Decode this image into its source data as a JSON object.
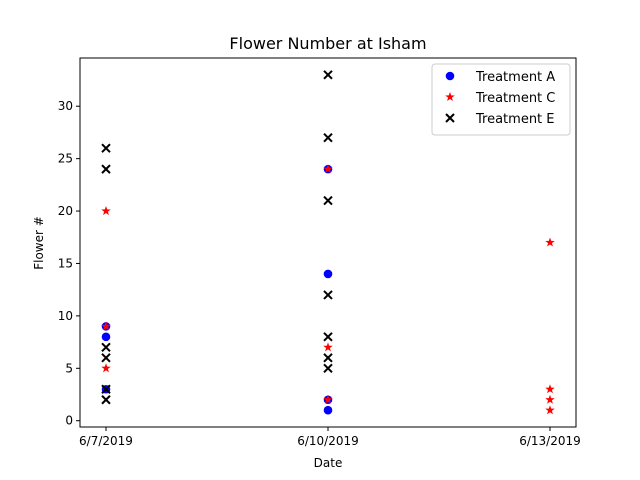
{
  "chart_data": {
    "type": "scatter",
    "title": "Flower Number at Isham",
    "xlabel": "Date",
    "ylabel": "Flower #",
    "x_categories": [
      "6/7/2019",
      "6/10/2019",
      "6/13/2019"
    ],
    "ylim": [
      -0.6,
      34.6
    ],
    "yticks": [
      0,
      5,
      10,
      15,
      20,
      25,
      30
    ],
    "grid": false,
    "legend_position": "top-right",
    "series": [
      {
        "name": "Treatment A",
        "marker": "circle",
        "color": "#0000ff",
        "points": [
          {
            "x": "6/7/2019",
            "y": 9
          },
          {
            "x": "6/7/2019",
            "y": 8
          },
          {
            "x": "6/7/2019",
            "y": 3
          },
          {
            "x": "6/10/2019",
            "y": 24
          },
          {
            "x": "6/10/2019",
            "y": 14
          },
          {
            "x": "6/10/2019",
            "y": 2
          },
          {
            "x": "6/10/2019",
            "y": 1
          }
        ]
      },
      {
        "name": "Treatment C",
        "marker": "star",
        "color": "#ff0000",
        "points": [
          {
            "x": "6/7/2019",
            "y": 20
          },
          {
            "x": "6/7/2019",
            "y": 9
          },
          {
            "x": "6/7/2019",
            "y": 5
          },
          {
            "x": "6/10/2019",
            "y": 24
          },
          {
            "x": "6/10/2019",
            "y": 7
          },
          {
            "x": "6/10/2019",
            "y": 2
          },
          {
            "x": "6/13/2019",
            "y": 17
          },
          {
            "x": "6/13/2019",
            "y": 3
          },
          {
            "x": "6/13/2019",
            "y": 2
          },
          {
            "x": "6/13/2019",
            "y": 1
          }
        ]
      },
      {
        "name": "Treatment E",
        "marker": "x",
        "color": "#000000",
        "points": [
          {
            "x": "6/7/2019",
            "y": 26
          },
          {
            "x": "6/7/2019",
            "y": 24
          },
          {
            "x": "6/7/2019",
            "y": 7
          },
          {
            "x": "6/7/2019",
            "y": 6
          },
          {
            "x": "6/7/2019",
            "y": 3
          },
          {
            "x": "6/7/2019",
            "y": 2
          },
          {
            "x": "6/10/2019",
            "y": 33
          },
          {
            "x": "6/10/2019",
            "y": 27
          },
          {
            "x": "6/10/2019",
            "y": 21
          },
          {
            "x": "6/10/2019",
            "y": 12
          },
          {
            "x": "6/10/2019",
            "y": 8
          },
          {
            "x": "6/10/2019",
            "y": 6
          },
          {
            "x": "6/10/2019",
            "y": 5
          }
        ]
      }
    ]
  }
}
